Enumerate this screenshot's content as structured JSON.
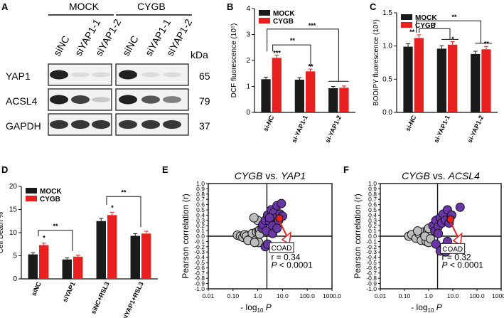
{
  "panels": {
    "A": {
      "label": "A",
      "groups": [
        "MOCK",
        "CYGB"
      ],
      "lanes": [
        "siNC",
        "siYAP1-1",
        "siYAP1-2",
        "siNC",
        "siYAP1-1",
        "siYAP1-2"
      ],
      "kda_label": "kDa",
      "rows": [
        {
          "protein": "YAP1",
          "kda": "65",
          "intensities": [
            1.0,
            0.1,
            0.1,
            1.0,
            0.1,
            0.1
          ]
        },
        {
          "protein": "ACSL4",
          "kda": "79",
          "intensities": [
            1.0,
            0.85,
            0.2,
            1.0,
            0.75,
            0.55
          ]
        },
        {
          "protein": "GAPDH",
          "kda": "37",
          "intensities": [
            0.9,
            0.9,
            0.9,
            0.9,
            0.9,
            0.9
          ]
        }
      ]
    },
    "B": {
      "label": "B",
      "sig": [
        "***",
        "**",
        "***",
        "**"
      ]
    },
    "C": {
      "label": "C",
      "sig": [
        "**",
        "*",
        "**",
        "*",
        "**"
      ]
    },
    "D": {
      "label": "D",
      "sig": [
        "**",
        "**",
        "*",
        "*"
      ]
    },
    "E": {
      "label": "E",
      "sig": []
    },
    "F": {
      "label": "F",
      "sig": []
    }
  },
  "colors": {
    "mock": "#1a1a1a",
    "cygb": "#e8201f",
    "point_grey": "#bdbdbd",
    "point_purple": "#6a35a6",
    "point_red": "#e8201f"
  },
  "chart_data": [
    {
      "id": "B",
      "type": "bar",
      "title": "",
      "ylabel": "DCF fluorescence (10⁵)",
      "ylim": [
        0,
        4
      ],
      "yticks": [
        "0",
        "1",
        "2",
        "3",
        "4"
      ],
      "categories": [
        "si-NC",
        "si-YAP1-1",
        "si-YAP1-2"
      ],
      "series": [
        {
          "name": "MOCK",
          "values": [
            1.28,
            1.26,
            0.93
          ]
        },
        {
          "name": "CYGB",
          "values": [
            2.1,
            1.58,
            0.95
          ]
        }
      ]
    },
    {
      "id": "C",
      "type": "bar",
      "title": "",
      "ylabel": "BODIPY fluorescence (10⁶)",
      "ylim": [
        0,
        1.5
      ],
      "yticks": [
        "0.0",
        "0.5",
        "1.0",
        "1.5"
      ],
      "categories": [
        "si-NC",
        "si-YAP1-1",
        "si-YAP1-2"
      ],
      "series": [
        {
          "name": "MOCK",
          "values": [
            0.99,
            0.96,
            0.88
          ]
        },
        {
          "name": "CYGB",
          "values": [
            1.12,
            1.02,
            0.95
          ]
        }
      ]
    },
    {
      "id": "D",
      "type": "bar",
      "title": "",
      "ylabel": "Cell Death %",
      "ylim": [
        0,
        20
      ],
      "yticks": [
        "0",
        "5",
        "10",
        "15",
        "20"
      ],
      "categories": [
        "siNC",
        "siYAP1",
        "siNC+RSL3",
        "siYAP1+RSL3"
      ],
      "series": [
        {
          "name": "MOCK",
          "values": [
            5.3,
            4.2,
            12.5,
            9.3
          ]
        },
        {
          "name": "CYGB",
          "values": [
            7.3,
            4.8,
            13.8,
            9.8
          ]
        }
      ]
    },
    {
      "id": "E",
      "type": "scatter",
      "title": "CYGB vs. YAP1",
      "title_parts": [
        "CYGB",
        " vs. ",
        "YAP1"
      ],
      "xlabel": "- log10 P",
      "xlabel_main": "- log",
      "xlabel_sub": "10",
      "xlabel_var": "P",
      "ylabel": "Pearson correlation (r)",
      "xscale": "log",
      "xlim": [
        0.01,
        1000
      ],
      "xticks": [
        "0.01",
        "0.10",
        "1.0",
        "10.0",
        "100.0",
        "1000.0"
      ],
      "ylim": [
        -1.0,
        1.0
      ],
      "yticks": [
        "1.0",
        "0.9",
        "0.8",
        "0.7",
        "0.6",
        "0.5",
        "0.4",
        "0.3",
        "0.2",
        "0.1",
        "0.0",
        "-0.1",
        "-0.2",
        "-0.3",
        "-0.4",
        "-0.5",
        "-0.6",
        "-0.7",
        "-0.8",
        "-0.9",
        "-1.0"
      ],
      "threshold_x": 1.3,
      "annotation": "COAD",
      "stat_r": "r = 0.34",
      "stat_p_var": "P",
      "stat_p_rest": " < 0.0001",
      "points": [
        {
          "x": 0.15,
          "y": 0.02,
          "c": "grey"
        },
        {
          "x": 0.2,
          "y": 0.0,
          "c": "grey"
        },
        {
          "x": 0.25,
          "y": -0.02,
          "c": "grey"
        },
        {
          "x": 0.3,
          "y": 0.03,
          "c": "grey"
        },
        {
          "x": 0.35,
          "y": 0.0,
          "c": "grey"
        },
        {
          "x": 0.5,
          "y": -0.05,
          "c": "grey"
        },
        {
          "x": 0.6,
          "y": 0.05,
          "c": "grey"
        },
        {
          "x": 0.8,
          "y": -0.08,
          "c": "grey"
        },
        {
          "x": 0.9,
          "y": 0.08,
          "c": "grey"
        },
        {
          "x": 1.0,
          "y": -0.1,
          "c": "grey"
        },
        {
          "x": 1.1,
          "y": 0.1,
          "c": "grey"
        },
        {
          "x": 1.0,
          "y": 0.3,
          "c": "grey"
        },
        {
          "x": 0.7,
          "y": 0.35,
          "c": "grey"
        },
        {
          "x": 1.2,
          "y": 0.12,
          "c": "grey"
        },
        {
          "x": 1.1,
          "y": -0.12,
          "c": "grey"
        },
        {
          "x": 0.4,
          "y": -0.08,
          "c": "grey"
        },
        {
          "x": 1.2,
          "y": 0.04,
          "c": "grey"
        },
        {
          "x": 0.75,
          "y": -0.12,
          "c": "grey"
        },
        {
          "x": 1.5,
          "y": 0.15,
          "c": "purple"
        },
        {
          "x": 1.6,
          "y": 0.22,
          "c": "purple"
        },
        {
          "x": 2.0,
          "y": 0.3,
          "c": "purple"
        },
        {
          "x": 2.2,
          "y": 0.1,
          "c": "purple"
        },
        {
          "x": 2.5,
          "y": 0.4,
          "c": "purple"
        },
        {
          "x": 3.0,
          "y": 0.28,
          "c": "purple"
        },
        {
          "x": 3.5,
          "y": 0.5,
          "c": "purple"
        },
        {
          "x": 4.0,
          "y": 0.2,
          "c": "purple"
        },
        {
          "x": 4.5,
          "y": 0.45,
          "c": "purple"
        },
        {
          "x": 5.5,
          "y": 0.35,
          "c": "purple"
        },
        {
          "x": 6.0,
          "y": 0.58,
          "c": "purple"
        },
        {
          "x": 7.0,
          "y": 0.3,
          "c": "purple"
        },
        {
          "x": 8.0,
          "y": 0.42,
          "c": "purple"
        },
        {
          "x": 9.0,
          "y": 0.62,
          "c": "purple"
        },
        {
          "x": 10.0,
          "y": 0.38,
          "c": "purple"
        },
        {
          "x": 2.0,
          "y": -0.2,
          "c": "purple"
        },
        {
          "x": 2.5,
          "y": -0.15,
          "c": "purple"
        },
        {
          "x": 4.0,
          "y": 0.05,
          "c": "purple"
        },
        {
          "x": 6.0,
          "y": 0.15,
          "c": "purple"
        },
        {
          "x": 3.0,
          "y": 0.35,
          "c": "purple"
        },
        {
          "x": 7.5,
          "y": 0.34,
          "c": "red"
        }
      ]
    },
    {
      "id": "F",
      "type": "scatter",
      "title": "CYGB vs. ACSL4",
      "title_parts": [
        "CYGB",
        " vs. ",
        "ACSL4"
      ],
      "xlabel": "- log10 P",
      "xlabel_main": "- log",
      "xlabel_sub": "10",
      "xlabel_var": "P",
      "ylabel": "Pearson correlation (r)",
      "xscale": "log",
      "xlim": [
        0.01,
        1000
      ],
      "xticks": [
        "0.01",
        "0.10",
        "1.0",
        "10.0",
        "100.0",
        "1000.0"
      ],
      "ylim": [
        -1.0,
        1.0
      ],
      "yticks": [
        "1.0",
        "0.9",
        "0.8",
        "0.7",
        "0.6",
        "0.5",
        "0.4",
        "0.3",
        "0.2",
        "0.1",
        "0.0",
        "-0.1",
        "-0.2",
        "-0.3",
        "-0.4",
        "-0.5",
        "-0.6",
        "-0.7",
        "-0.8",
        "-0.9",
        "-1.0"
      ],
      "threshold_x": 1.3,
      "annotation": "COAD",
      "stat_r": "r = 0.32",
      "stat_p_var": "P",
      "stat_p_rest": " < 0.0001",
      "points": [
        {
          "x": 0.15,
          "y": 0.0,
          "c": "grey"
        },
        {
          "x": 0.2,
          "y": 0.03,
          "c": "grey"
        },
        {
          "x": 0.3,
          "y": -0.04,
          "c": "grey"
        },
        {
          "x": 0.4,
          "y": 0.05,
          "c": "grey"
        },
        {
          "x": 0.5,
          "y": -0.08,
          "c": "grey"
        },
        {
          "x": 0.6,
          "y": 0.08,
          "c": "grey"
        },
        {
          "x": 0.8,
          "y": -0.1,
          "c": "grey"
        },
        {
          "x": 0.9,
          "y": 0.12,
          "c": "grey"
        },
        {
          "x": 1.0,
          "y": -0.12,
          "c": "grey"
        },
        {
          "x": 1.1,
          "y": 0.04,
          "c": "grey"
        },
        {
          "x": 0.7,
          "y": 0.0,
          "c": "grey"
        },
        {
          "x": 1.2,
          "y": -0.05,
          "c": "grey"
        },
        {
          "x": 0.35,
          "y": 0.1,
          "c": "grey"
        },
        {
          "x": 1.0,
          "y": 0.15,
          "c": "grey"
        },
        {
          "x": 1.5,
          "y": 0.2,
          "c": "purple"
        },
        {
          "x": 1.8,
          "y": 0.1,
          "c": "purple"
        },
        {
          "x": 2.0,
          "y": 0.3,
          "c": "purple"
        },
        {
          "x": 2.5,
          "y": 0.18,
          "c": "purple"
        },
        {
          "x": 3.0,
          "y": 0.35,
          "c": "purple"
        },
        {
          "x": 3.5,
          "y": 0.25,
          "c": "purple"
        },
        {
          "x": 4.0,
          "y": 0.42,
          "c": "purple"
        },
        {
          "x": 5.0,
          "y": 0.3,
          "c": "purple"
        },
        {
          "x": 6.0,
          "y": 0.5,
          "c": "purple"
        },
        {
          "x": 7.0,
          "y": 0.25,
          "c": "purple"
        },
        {
          "x": 9.0,
          "y": 0.4,
          "c": "purple"
        },
        {
          "x": 20.0,
          "y": 0.55,
          "c": "purple"
        },
        {
          "x": 2.0,
          "y": -0.15,
          "c": "purple"
        },
        {
          "x": 3.0,
          "y": -0.28,
          "c": "purple"
        },
        {
          "x": 4.5,
          "y": -0.2,
          "c": "purple"
        },
        {
          "x": 6.0,
          "y": -0.1,
          "c": "purple"
        },
        {
          "x": 5.0,
          "y": -0.3,
          "c": "purple"
        },
        {
          "x": 2.5,
          "y": 0.05,
          "c": "purple"
        },
        {
          "x": 8.0,
          "y": 0.32,
          "c": "red"
        }
      ]
    }
  ]
}
